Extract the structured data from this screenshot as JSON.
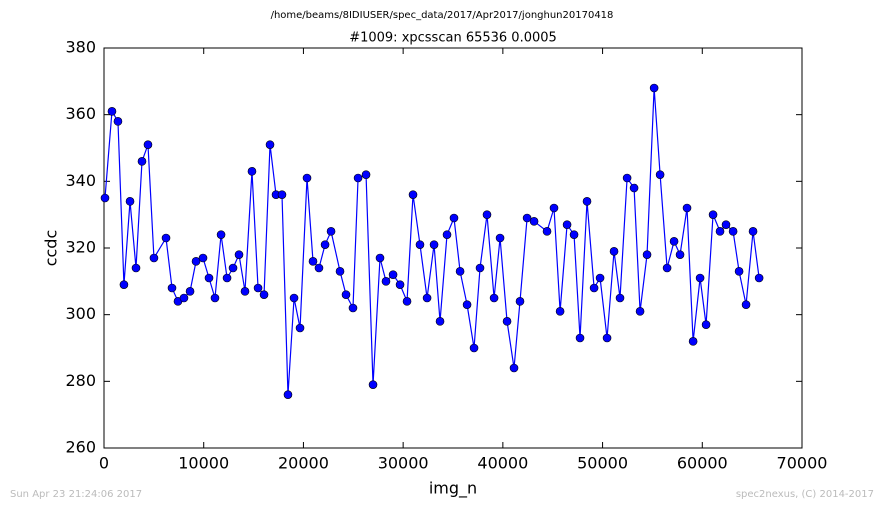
{
  "chart_data": {
    "type": "line",
    "suptitle": "/home/beams/8IDIUSER/spec_data/2017/Apr2017/jonghun20170418",
    "title": "#1009: xpcsscan 65536 0.0005",
    "xlabel": "img_n",
    "ylabel": "ccdc",
    "footer_left": "Sun Apr 23 21:24:06 2017",
    "footer_right": "spec2nexus, (C) 2014-2017",
    "xlim": [
      0,
      70000
    ],
    "xticks": [
      0,
      10000,
      20000,
      30000,
      40000,
      50000,
      60000,
      70000
    ],
    "ylim": [
      260,
      380
    ],
    "yticks": [
      260,
      280,
      300,
      320,
      340,
      360,
      380
    ],
    "x": [
      100,
      800,
      1400,
      2000,
      2610,
      3210,
      3810,
      4410,
      5010,
      6220,
      6820,
      7420,
      8020,
      8630,
      9230,
      9930,
      10530,
      11130,
      11740,
      12340,
      12940,
      13540,
      14140,
      14840,
      15450,
      16050,
      16650,
      17250,
      17850,
      18450,
      19060,
      19660,
      20360,
      20960,
      21560,
      22170,
      22770,
      23670,
      24270,
      24970,
      25480,
      26280,
      26980,
      27680,
      28280,
      28990,
      29690,
      30390,
      30990,
      31690,
      32400,
      33100,
      33700,
      34400,
      35100,
      35710,
      36410,
      37110,
      37710,
      38410,
      39120,
      39720,
      40420,
      41120,
      41720,
      42430,
      43130,
      44430,
      45130,
      45740,
      46440,
      47140,
      47740,
      48440,
      49150,
      49750,
      50450,
      51150,
      51750,
      52460,
      53160,
      53760,
      54460,
      55170,
      55770,
      56470,
      57170,
      57770,
      58470,
      59080,
      59780,
      60380,
      61080,
      61780,
      62380,
      63090,
      63690,
      64390,
      65090,
      65700
    ],
    "series": [
      {
        "name": "ccdc",
        "color": "#0000ff",
        "values": [
          335,
          361,
          358,
          309,
          334,
          314,
          346,
          351,
          317,
          323,
          308,
          304,
          305,
          307,
          316,
          317,
          311,
          305,
          324,
          311,
          314,
          318,
          307,
          343,
          308,
          306,
          351,
          336,
          336,
          276,
          305,
          296,
          341,
          316,
          314,
          321,
          325,
          313,
          306,
          302,
          341,
          342,
          279,
          317,
          310,
          312,
          309,
          304,
          336,
          321,
          305,
          321,
          298,
          324,
          329,
          313,
          303,
          290,
          314,
          330,
          305,
          323,
          298,
          284,
          304,
          329,
          328,
          325,
          332,
          301,
          327,
          324,
          293,
          334,
          308,
          311,
          293,
          319,
          305,
          341,
          338,
          301,
          318,
          368,
          342,
          314,
          322,
          318,
          332,
          292,
          311,
          297,
          330,
          325,
          327,
          325,
          313,
          303,
          325,
          311
        ]
      }
    ]
  }
}
